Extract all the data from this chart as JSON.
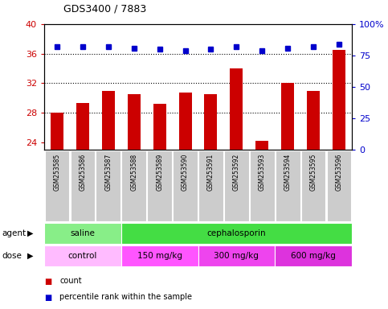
{
  "title": "GDS3400 / 7883",
  "samples": [
    "GSM253585",
    "GSM253586",
    "GSM253587",
    "GSM253588",
    "GSM253589",
    "GSM253590",
    "GSM253591",
    "GSM253592",
    "GSM253593",
    "GSM253594",
    "GSM253595",
    "GSM253596"
  ],
  "counts": [
    28.0,
    29.3,
    31.0,
    30.5,
    29.2,
    30.7,
    30.5,
    34.0,
    24.2,
    32.0,
    31.0,
    36.5
  ],
  "percentile_ranks": [
    82,
    82,
    82,
    81,
    80,
    79,
    80,
    82,
    79,
    81,
    82,
    84
  ],
  "bar_color": "#cc0000",
  "dot_color": "#0000cc",
  "ylim_left": [
    23,
    40
  ],
  "ylim_right": [
    0,
    100
  ],
  "yticks_left": [
    24,
    28,
    32,
    36,
    40
  ],
  "yticks_right": [
    0,
    25,
    50,
    75,
    100
  ],
  "agent_groups": [
    {
      "label": "saline",
      "start": 0,
      "end": 3,
      "color": "#88ee88"
    },
    {
      "label": "cephalosporin",
      "start": 3,
      "end": 12,
      "color": "#44dd44"
    }
  ],
  "dose_groups": [
    {
      "label": "control",
      "start": 0,
      "end": 3,
      "color": "#ffbbff"
    },
    {
      "label": "150 mg/kg",
      "start": 3,
      "end": 6,
      "color": "#ff55ff"
    },
    {
      "label": "300 mg/kg",
      "start": 6,
      "end": 9,
      "color": "#ee44ee"
    },
    {
      "label": "600 mg/kg",
      "start": 9,
      "end": 12,
      "color": "#dd33dd"
    }
  ],
  "legend_count_color": "#cc0000",
  "legend_dot_color": "#0000cc",
  "tick_label_color_left": "#cc0000",
  "tick_label_color_right": "#0000cc",
  "sample_bg_color": "#cccccc",
  "gridline_vals": [
    28,
    32,
    36
  ],
  "agent_label": "agent",
  "dose_label": "dose"
}
